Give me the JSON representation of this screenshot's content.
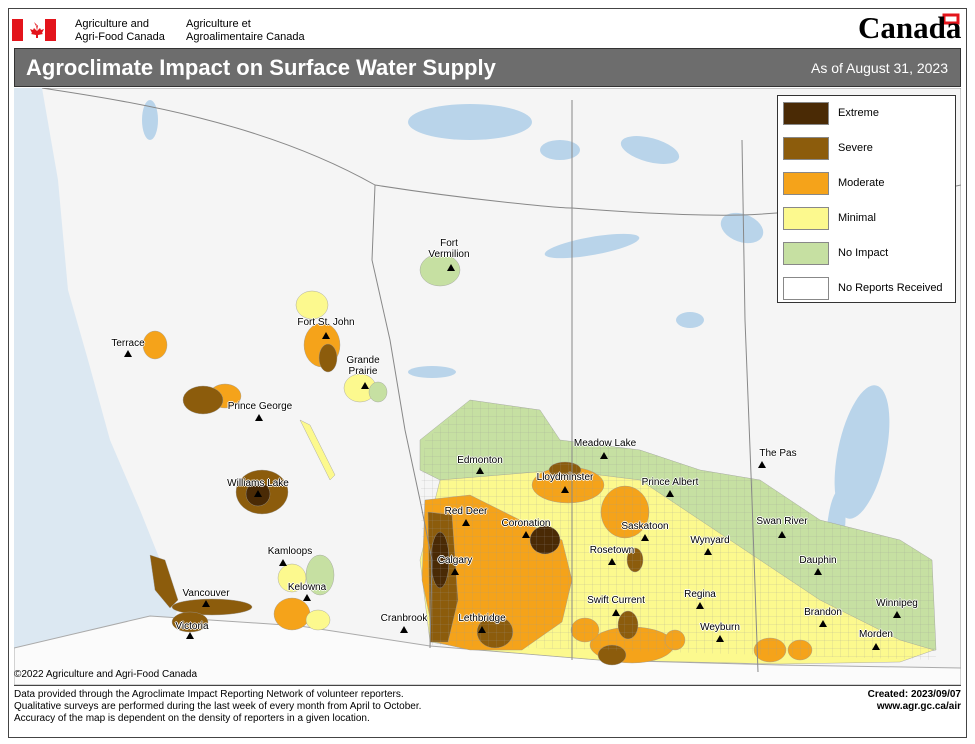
{
  "header": {
    "department_en": [
      "Agriculture and",
      "Agri-Food Canada"
    ],
    "department_fr": [
      "Agriculture et",
      "Agroalimentaire Canada"
    ],
    "wordmark": "Canada"
  },
  "title": "Agroclimate Impact on Surface Water Supply",
  "date": "As of August 31, 2023",
  "legend": [
    {
      "label": "Extreme",
      "color": "#4a2a05"
    },
    {
      "label": "Severe",
      "color": "#8c5c0c"
    },
    {
      "label": "Moderate",
      "color": "#f5a31a"
    },
    {
      "label": "Minimal",
      "color": "#fcf98e"
    },
    {
      "label": "No Impact",
      "color": "#c6e0a2"
    },
    {
      "label": "No Reports Received",
      "color": "#ffffff"
    }
  ],
  "cities": [
    "Fort Vermilion",
    "Fort St. John",
    "Grande Prairie",
    "Terrace",
    "Prince George",
    "Williams Lake",
    "Kamloops",
    "Kelowna",
    "Vancouver",
    "Victoria",
    "Cranbrook",
    "Edmonton",
    "Lloydminster",
    "Meadow Lake",
    "Red Deer",
    "Coronation",
    "Calgary",
    "Lethbridge",
    "Prince Albert",
    "Saskatoon",
    "Rosetown",
    "Swift Current",
    "Regina",
    "Weyburn",
    "Wynyard",
    "The Pas",
    "Swan River",
    "Dauphin",
    "Brandon",
    "Winnipeg",
    "Morden"
  ],
  "copyright": "©2022 Agriculture and Agri-Food Canada",
  "notes": [
    "Data provided through the Agroclimate Impact Reporting Network of volunteer reporters.",
    "Qualitative surveys are performed during the last week of every month from April to October.",
    "Accuracy of the map is dependent on the density of reporters in a given location."
  ],
  "created": "Created: 2023/09/07",
  "url": "www.agr.gc.ca/air"
}
